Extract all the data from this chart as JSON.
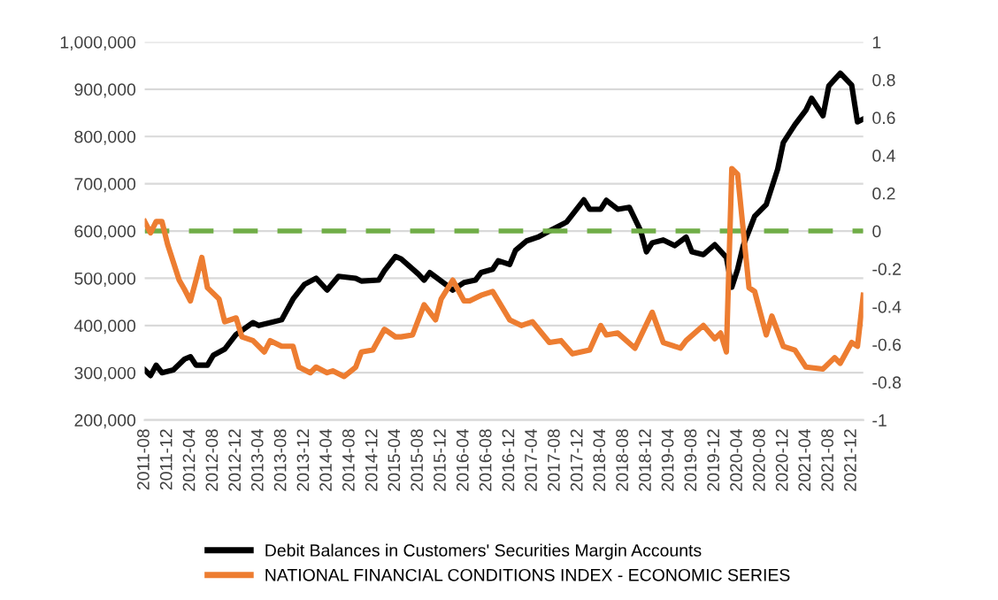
{
  "chart_data": {
    "type": "line",
    "ylim": [
      200000,
      1000000
    ],
    "yticks": [
      {
        "value": 200000,
        "label": "200,000"
      },
      {
        "value": 300000,
        "label": "300,000"
      },
      {
        "value": 400000,
        "label": "400,000"
      },
      {
        "value": 500000,
        "label": "500,000"
      },
      {
        "value": 600000,
        "label": "600,000"
      },
      {
        "value": 700000,
        "label": "700,000"
      },
      {
        "value": 800000,
        "label": "800,000"
      },
      {
        "value": 900000,
        "label": "900,000"
      },
      {
        "value": 1000000,
        "label": "1,000,000"
      }
    ],
    "y2lim": [
      -1,
      1
    ],
    "y2ticks": [
      -1,
      -0.8,
      -0.6,
      -0.4,
      -0.2,
      0,
      0.2,
      0.4,
      0.6,
      0.8,
      1
    ],
    "xlim": [
      "2011-08",
      "2022-02"
    ],
    "xticks": [
      "2011-08",
      "2011-12",
      "2012-04",
      "2012-08",
      "2012-12",
      "2013-04",
      "2013-08",
      "2013-12",
      "2014-04",
      "2014-08",
      "2014-12",
      "2015-04",
      "2015-08",
      "2015-12",
      "2016-04",
      "2016-08",
      "2016-12",
      "2017-04",
      "2017-08",
      "2017-12",
      "2018-04",
      "2018-08",
      "2018-12",
      "2019-04",
      "2019-08",
      "2019-12",
      "2020-04",
      "2020-08",
      "2020-12",
      "2021-04",
      "2021-08",
      "2021-12"
    ],
    "grid": "y",
    "legend": "bottom",
    "marker": "none",
    "line_style": "solid",
    "ref_lines": [
      {
        "axis": "y2",
        "value": 0,
        "color": "#70ad47",
        "line_style": "dashed"
      }
    ],
    "series": [
      {
        "name": "Debit Balances in Customers' Securities Margin Accounts",
        "color": "#000000",
        "x": [
          "2011-08",
          "2011-09",
          "2011-10",
          "2011-11",
          "2012-01",
          "2012-03",
          "2012-04",
          "2012-05",
          "2012-07",
          "2012-08",
          "2012-10",
          "2012-12",
          "2013-03",
          "2013-04",
          "2013-08",
          "2013-10",
          "2013-12",
          "2014-02",
          "2014-04",
          "2014-06",
          "2014-09",
          "2014-10",
          "2015-01",
          "2015-02",
          "2015-04",
          "2015-05",
          "2015-08",
          "2015-09",
          "2015-10",
          "2016-01",
          "2016-02",
          "2016-04",
          "2016-06",
          "2016-07",
          "2016-09",
          "2016-10",
          "2016-12",
          "2017-01",
          "2017-03",
          "2017-05",
          "2017-07",
          "2017-10",
          "2018-01",
          "2018-02",
          "2018-04",
          "2018-05",
          "2018-07",
          "2018-09",
          "2018-11",
          "2018-12",
          "2019-01",
          "2019-03",
          "2019-05",
          "2019-07",
          "2019-08",
          "2019-10",
          "2019-12",
          "2020-02",
          "2020-03",
          "2020-04",
          "2020-05",
          "2020-07",
          "2020-09",
          "2020-11",
          "2020-12",
          "2021-02",
          "2021-04",
          "2021-05",
          "2021-07",
          "2021-08",
          "2021-10",
          "2021-12",
          "2022-01",
          "2022-02"
        ],
        "values": [
          306000,
          294000,
          316000,
          300000,
          306000,
          329000,
          334000,
          316000,
          316000,
          337000,
          350000,
          381000,
          406000,
          400000,
          412000,
          456000,
          487000,
          500000,
          475000,
          504000,
          500000,
          494000,
          496000,
          516000,
          546000,
          541000,
          509000,
          496000,
          512000,
          485000,
          475000,
          491000,
          496000,
          512000,
          519000,
          537000,
          529000,
          559000,
          579000,
          587000,
          600000,
          619000,
          666000,
          646000,
          646000,
          665000,
          646000,
          650000,
          600000,
          556000,
          575000,
          581000,
          569000,
          587000,
          556000,
          550000,
          571000,
          544000,
          481000,
          519000,
          569000,
          631000,
          656000,
          731000,
          787000,
          825000,
          856000,
          881000,
          844000,
          907000,
          934000,
          909000,
          831000,
          837000
        ]
      },
      {
        "name": "NATIONAL FINANCIAL CONDITIONS INDEX - ECONOMIC SERIES",
        "color": "#ed7d31",
        "axis": "y2",
        "x": [
          "2011-08",
          "2011-09",
          "2011-10",
          "2011-11",
          "2011-12",
          "2012-02",
          "2012-03",
          "2012-04",
          "2012-05",
          "2012-06",
          "2012-07",
          "2012-09",
          "2012-10",
          "2012-12",
          "2013-01",
          "2013-03",
          "2013-05",
          "2013-06",
          "2013-08",
          "2013-10",
          "2013-11",
          "2014-01",
          "2014-02",
          "2014-04",
          "2014-05",
          "2014-07",
          "2014-09",
          "2014-10",
          "2014-12",
          "2015-02",
          "2015-04",
          "2015-05",
          "2015-07",
          "2015-09",
          "2015-11",
          "2015-12",
          "2016-02",
          "2016-04",
          "2016-05",
          "2016-07",
          "2016-09",
          "2016-12",
          "2017-02",
          "2017-04",
          "2017-07",
          "2017-09",
          "2017-11",
          "2018-02",
          "2018-04",
          "2018-05",
          "2018-07",
          "2018-10",
          "2019-01",
          "2019-03",
          "2019-06",
          "2019-07",
          "2019-10",
          "2019-12",
          "2020-01",
          "2020-02",
          "2020-03",
          "2020-04",
          "2020-06",
          "2020-07",
          "2020-09",
          "2020-10",
          "2020-12",
          "2021-02",
          "2021-04",
          "2021-07",
          "2021-09",
          "2021-10",
          "2021-12",
          "2022-01",
          "2022-02"
        ],
        "values": [
          0.05,
          -0.01,
          0.05,
          0.05,
          -0.07,
          -0.26,
          -0.31,
          -0.37,
          -0.26,
          -0.14,
          -0.3,
          -0.36,
          -0.48,
          -0.46,
          -0.56,
          -0.58,
          -0.64,
          -0.58,
          -0.61,
          -0.61,
          -0.72,
          -0.75,
          -0.72,
          -0.75,
          -0.74,
          -0.77,
          -0.72,
          -0.64,
          -0.63,
          -0.52,
          -0.56,
          -0.56,
          -0.55,
          -0.39,
          -0.47,
          -0.36,
          -0.26,
          -0.37,
          -0.37,
          -0.34,
          -0.32,
          -0.47,
          -0.5,
          -0.48,
          -0.59,
          -0.58,
          -0.65,
          -0.63,
          -0.5,
          -0.55,
          -0.54,
          -0.62,
          -0.43,
          -0.59,
          -0.62,
          -0.58,
          -0.5,
          -0.57,
          -0.54,
          -0.64,
          0.33,
          0.3,
          -0.3,
          -0.32,
          -0.55,
          -0.45,
          -0.61,
          -0.63,
          -0.72,
          -0.73,
          -0.67,
          -0.7,
          -0.59,
          -0.61,
          -0.34
        ]
      }
    ]
  }
}
